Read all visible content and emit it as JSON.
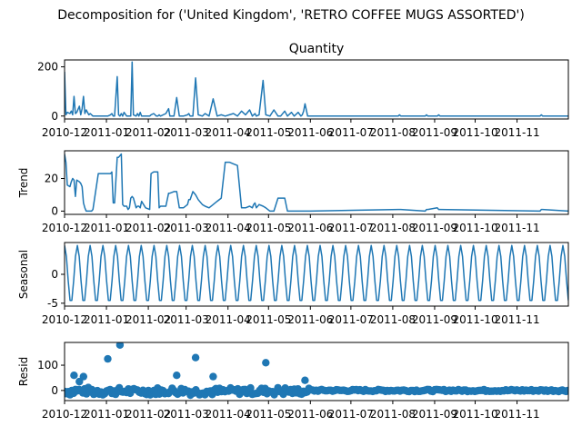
{
  "suptitle": "Decomposition for ('United Kingdom', 'RETRO COFFEE MUGS ASSORTED')",
  "x_tick_labels": [
    "2010-12",
    "2011-01",
    "2011-02",
    "2011-03",
    "2011-04",
    "2011-05",
    "2011-06",
    "2011-07",
    "2011-08",
    "2011-09",
    "2011-10",
    "2011-11"
  ],
  "colors": {
    "series": "#1f77b4",
    "axis": "#000000"
  },
  "chart_data": [
    {
      "type": "line",
      "title": "Quantity",
      "ylabel": "",
      "yticks": [
        0,
        200
      ],
      "ylim": [
        -12,
        228
      ],
      "xlim": [
        "2010-12-01",
        "2011-12-09"
      ],
      "series": [
        {
          "x": [
            "2010-12-01",
            "2010-12-02",
            "2010-12-03",
            "2010-12-05",
            "2010-12-06",
            "2010-12-07",
            "2010-12-08",
            "2010-12-09",
            "2010-12-10",
            "2010-12-12",
            "2010-12-13",
            "2010-12-14",
            "2010-12-15",
            "2010-12-16",
            "2010-12-17",
            "2010-12-19",
            "2010-12-20",
            "2010-12-21",
            "2010-12-22",
            "2010-12-26",
            "2011-01-02",
            "2011-01-04",
            "2011-01-05",
            "2011-01-06",
            "2011-01-07",
            "2011-01-09",
            "2011-01-10",
            "2011-01-11",
            "2011-01-12",
            "2011-01-13",
            "2011-01-14",
            "2011-01-16",
            "2011-01-17",
            "2011-01-18",
            "2011-01-19",
            "2011-01-20",
            "2011-01-21",
            "2011-01-23",
            "2011-01-24",
            "2011-01-25",
            "2011-01-26",
            "2011-01-27",
            "2011-01-30",
            "2011-02-02",
            "2011-02-03",
            "2011-02-05",
            "2011-02-07",
            "2011-02-08",
            "2011-02-09",
            "2011-02-10",
            "2011-02-14",
            "2011-02-16",
            "2011-02-17",
            "2011-02-20",
            "2011-02-22",
            "2011-02-24",
            "2011-02-27",
            "2011-03-02",
            "2011-03-03",
            "2011-03-04",
            "2011-03-06",
            "2011-03-08",
            "2011-03-10",
            "2011-03-13",
            "2011-03-15",
            "2011-03-18",
            "2011-03-21",
            "2011-03-24",
            "2011-03-27",
            "2011-03-30",
            "2011-04-02",
            "2011-04-05",
            "2011-04-08",
            "2011-04-11",
            "2011-04-14",
            "2011-04-17",
            "2011-04-19",
            "2011-04-20",
            "2011-04-21",
            "2011-04-22",
            "2011-04-24",
            "2011-04-27",
            "2011-04-29",
            "2011-05-02",
            "2011-05-05",
            "2011-05-08",
            "2011-05-10",
            "2011-05-13",
            "2011-05-15",
            "2011-05-18",
            "2011-05-20",
            "2011-05-23",
            "2011-05-25",
            "2011-05-26",
            "2011-05-27",
            "2011-05-28",
            "2011-05-30",
            "2011-06-01",
            "2011-08-05",
            "2011-08-06",
            "2011-08-07",
            "2011-08-25",
            "2011-08-26",
            "2011-08-27",
            "2011-09-03",
            "2011-09-04",
            "2011-09-05",
            "2011-11-18",
            "2011-11-19",
            "2011-11-20",
            "2011-12-09"
          ],
          "values": [
            180,
            5,
            15,
            10,
            20,
            5,
            80,
            10,
            15,
            40,
            5,
            30,
            80,
            10,
            25,
            5,
            10,
            5,
            0,
            0,
            0,
            5,
            10,
            0,
            0,
            160,
            5,
            0,
            10,
            0,
            15,
            0,
            0,
            0,
            0,
            220,
            5,
            0,
            10,
            0,
            15,
            0,
            0,
            0,
            5,
            10,
            0,
            0,
            5,
            0,
            10,
            30,
            0,
            0,
            75,
            0,
            0,
            5,
            10,
            0,
            0,
            155,
            5,
            0,
            10,
            0,
            70,
            0,
            5,
            0,
            5,
            10,
            0,
            20,
            5,
            25,
            0,
            5,
            10,
            0,
            5,
            145,
            5,
            0,
            25,
            0,
            0,
            20,
            0,
            15,
            0,
            15,
            0,
            5,
            20,
            50,
            0,
            0,
            0,
            5,
            0,
            0,
            5,
            0,
            0,
            5,
            0,
            0,
            5,
            0,
            0
          ]
        }
      ]
    },
    {
      "type": "line",
      "title": "",
      "ylabel": "Trend",
      "yticks": [
        0,
        20
      ],
      "ylim": [
        -2,
        37
      ],
      "xlim": [
        "2010-12-01",
        "2011-12-09"
      ],
      "series": [
        {
          "x": [
            "2010-12-01",
            "2010-12-02",
            "2010-12-03",
            "2010-12-05",
            "2010-12-06",
            "2010-12-07",
            "2010-12-08",
            "2010-12-09",
            "2010-12-10",
            "2010-12-12",
            "2010-12-13",
            "2010-12-14",
            "2010-12-15",
            "2010-12-16",
            "2010-12-17",
            "2010-12-19",
            "2010-12-20",
            "2010-12-21",
            "2010-12-22",
            "2010-12-26",
            "2011-01-02",
            "2011-01-04",
            "2011-01-05",
            "2011-01-06",
            "2011-01-07",
            "2011-01-09",
            "2011-01-10",
            "2011-01-11",
            "2011-01-12",
            "2011-01-13",
            "2011-01-14",
            "2011-01-16",
            "2011-01-17",
            "2011-01-18",
            "2011-01-19",
            "2011-01-20",
            "2011-01-21",
            "2011-01-23",
            "2011-01-24",
            "2011-01-25",
            "2011-01-26",
            "2011-01-27",
            "2011-01-30",
            "2011-02-02",
            "2011-02-03",
            "2011-02-05",
            "2011-02-07",
            "2011-02-08",
            "2011-02-09",
            "2011-02-10",
            "2011-02-14",
            "2011-02-16",
            "2011-02-17",
            "2011-02-20",
            "2011-02-22",
            "2011-02-24",
            "2011-02-27",
            "2011-03-02",
            "2011-03-03",
            "2011-03-04",
            "2011-03-06",
            "2011-03-08",
            "2011-03-10",
            "2011-03-13",
            "2011-03-15",
            "2011-03-18",
            "2011-03-21",
            "2011-03-24",
            "2011-03-27",
            "2011-03-30",
            "2011-04-02",
            "2011-04-05",
            "2011-04-08",
            "2011-04-11",
            "2011-04-14",
            "2011-04-17",
            "2011-04-19",
            "2011-04-20",
            "2011-04-21",
            "2011-04-22",
            "2011-04-24",
            "2011-04-27",
            "2011-04-29",
            "2011-05-02",
            "2011-05-05",
            "2011-05-08",
            "2011-05-10",
            "2011-05-13",
            "2011-05-15",
            "2011-05-18",
            "2011-05-20",
            "2011-05-23",
            "2011-05-25",
            "2011-05-26",
            "2011-05-27",
            "2011-05-28",
            "2011-05-30",
            "2011-06-01",
            "2011-08-05",
            "2011-08-06",
            "2011-08-07",
            "2011-08-25",
            "2011-08-26",
            "2011-08-27",
            "2011-09-03",
            "2011-09-04",
            "2011-09-05",
            "2011-11-18",
            "2011-11-19",
            "2011-11-20",
            "2011-12-09"
          ],
          "values": [
            35,
            30,
            16,
            15,
            18,
            20,
            19,
            9,
            19,
            18,
            17,
            15,
            5,
            2,
            0,
            0,
            0,
            0,
            1,
            23,
            23,
            23,
            24,
            5,
            5,
            33,
            33,
            34,
            35,
            4,
            3,
            3,
            1,
            2,
            8,
            9,
            8,
            2,
            3,
            3,
            2,
            6,
            2,
            1,
            23,
            24,
            24,
            24,
            2,
            3,
            3,
            11,
            11,
            12,
            12,
            2,
            2,
            4,
            7,
            7,
            12,
            10,
            7,
            4,
            3,
            2,
            4,
            6,
            8,
            30,
            30,
            29,
            28,
            2,
            2,
            3,
            2,
            4,
            5,
            2,
            4,
            3,
            2,
            0,
            0,
            8,
            8,
            8,
            0,
            0,
            0,
            0,
            0,
            0,
            0,
            0,
            0,
            0,
            1,
            1,
            1,
            0,
            1,
            1,
            2,
            1,
            1,
            0,
            1,
            1,
            0
          ]
        }
      ]
    },
    {
      "type": "line",
      "title": "",
      "ylabel": "Seasonal",
      "yticks": [
        -5,
        0
      ],
      "ylim": [
        -5.5,
        5.5
      ],
      "xlim": [
        "2010-12-01",
        "2011-12-09"
      ],
      "period_points": 7,
      "amplitude": 5
    },
    {
      "type": "scatter",
      "title": "",
      "ylabel": "Resid",
      "yticks": [
        0,
        100
      ],
      "ylim": [
        -40,
        190
      ],
      "xlim": [
        "2010-12-01",
        "2011-12-09"
      ],
      "outliers": {
        "x": [
          "2010-12-08",
          "2010-12-12",
          "2010-12-15",
          "2011-01-02",
          "2011-01-11",
          "2011-02-22",
          "2011-03-08",
          "2011-03-21",
          "2011-04-29",
          "2011-05-28"
        ],
        "values": [
          60,
          35,
          55,
          125,
          180,
          60,
          130,
          55,
          110,
          40
        ]
      }
    }
  ]
}
